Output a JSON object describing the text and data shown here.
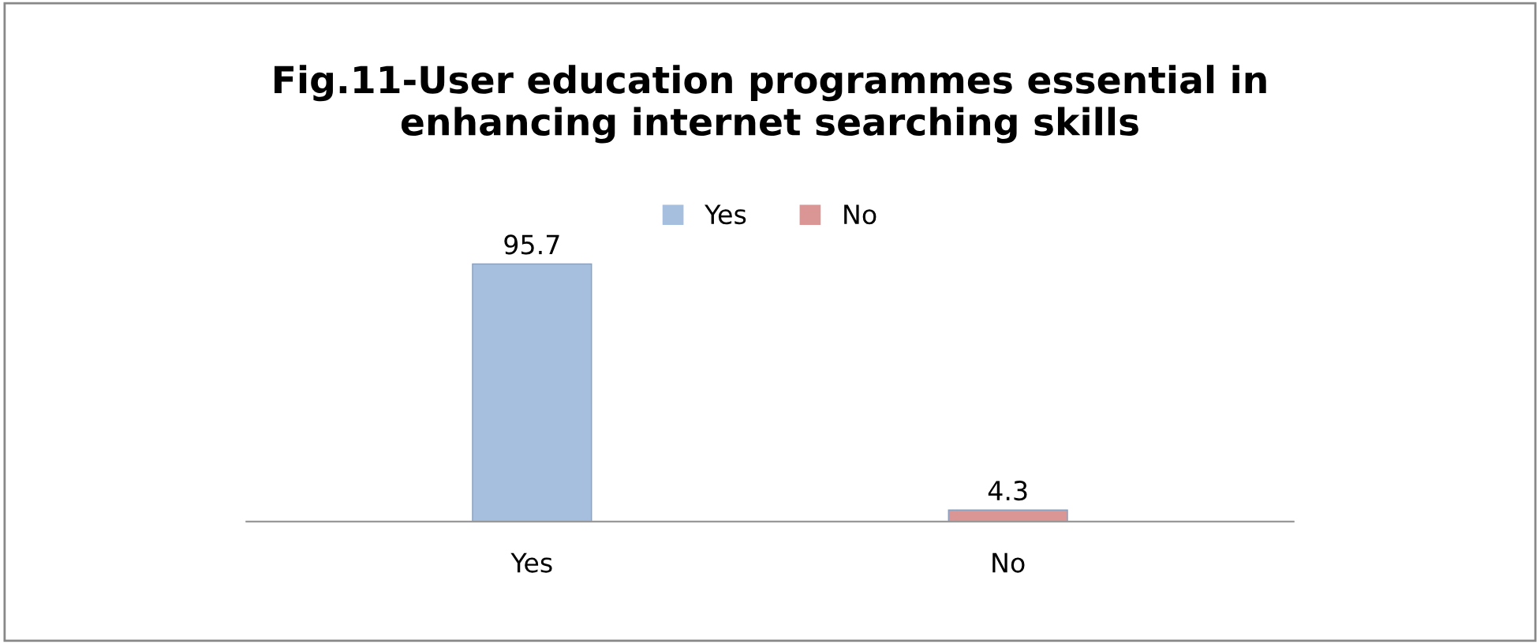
{
  "chart_data": {
    "type": "bar",
    "title": "Fig.11-User education programmes essential in\nenhancing internet searching skills",
    "categories": [
      "Yes",
      "No"
    ],
    "series": [
      {
        "name": "Yes",
        "color": "#a7bfde",
        "values": [
          95.7,
          null
        ]
      },
      {
        "name": "No",
        "color": "#d99694",
        "values": [
          null,
          4.3
        ]
      }
    ],
    "data_labels": true,
    "legend": "top",
    "grid": false
  }
}
